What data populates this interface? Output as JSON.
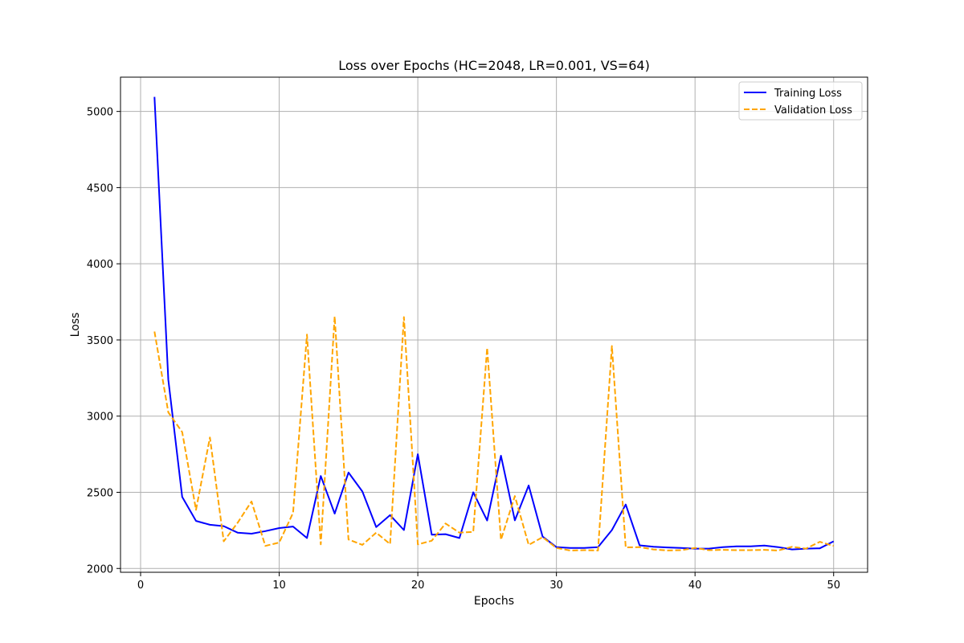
{
  "chart_data": {
    "type": "line",
    "title": "Loss over Epochs (HC=2048, LR=0.001, VS=64)",
    "xlabel": "Epochs",
    "ylabel": "Loss",
    "xlim": [
      -1.45,
      52.45
    ],
    "ylim": [
      1975,
      5225
    ],
    "xticks": [
      0,
      10,
      20,
      30,
      40,
      50
    ],
    "yticks": [
      2000,
      2500,
      3000,
      3500,
      4000,
      4500,
      5000
    ],
    "grid": true,
    "legend_position": "top-right",
    "x": [
      1,
      2,
      3,
      4,
      5,
      6,
      7,
      8,
      9,
      10,
      11,
      12,
      13,
      14,
      15,
      16,
      17,
      18,
      19,
      20,
      21,
      22,
      23,
      24,
      25,
      26,
      27,
      28,
      29,
      30,
      31,
      32,
      33,
      34,
      35,
      36,
      37,
      38,
      39,
      40,
      41,
      42,
      43,
      44,
      45,
      46,
      47,
      48,
      49,
      50
    ],
    "series": [
      {
        "name": "Training Loss",
        "color": "#0000ff",
        "style": "solid",
        "values": [
          5095,
          3240,
          2470,
          2312,
          2287,
          2278,
          2235,
          2228,
          2245,
          2265,
          2275,
          2200,
          2607,
          2360,
          2630,
          2505,
          2272,
          2350,
          2252,
          2750,
          2222,
          2225,
          2200,
          2500,
          2315,
          2740,
          2316,
          2545,
          2210,
          2140,
          2135,
          2135,
          2140,
          2252,
          2420,
          2152,
          2142,
          2138,
          2135,
          2130,
          2130,
          2140,
          2145,
          2145,
          2150,
          2140,
          2125,
          2130,
          2132,
          2178
        ]
      },
      {
        "name": "Validation Loss",
        "color": "#ffa500",
        "style": "dashed",
        "values": [
          3555,
          3025,
          2895,
          2385,
          2860,
          2178,
          2300,
          2440,
          2148,
          2170,
          2365,
          3535,
          2158,
          3655,
          2190,
          2155,
          2235,
          2160,
          3650,
          2158,
          2182,
          2295,
          2235,
          2240,
          3448,
          2188,
          2475,
          2155,
          2205,
          2135,
          2118,
          2120,
          2118,
          3460,
          2138,
          2140,
          2125,
          2118,
          2120,
          2135,
          2120,
          2122,
          2120,
          2120,
          2122,
          2118,
          2142,
          2130,
          2175,
          2148
        ]
      }
    ]
  }
}
